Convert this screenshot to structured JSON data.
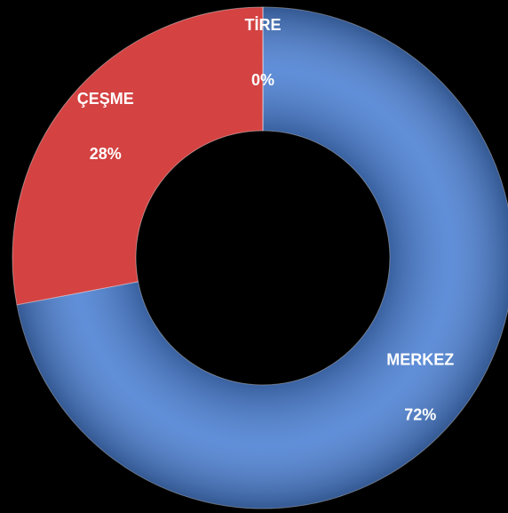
{
  "chart_data": {
    "type": "donut",
    "categories": [
      "MERKEZ",
      "ÇEŞME",
      "TİRE"
    ],
    "values": [
      72,
      28,
      0
    ],
    "value_labels": [
      "72%",
      "28%",
      "0%"
    ],
    "colors": [
      "#4a7fd3",
      "#d44242",
      "#9bbb59"
    ]
  }
}
